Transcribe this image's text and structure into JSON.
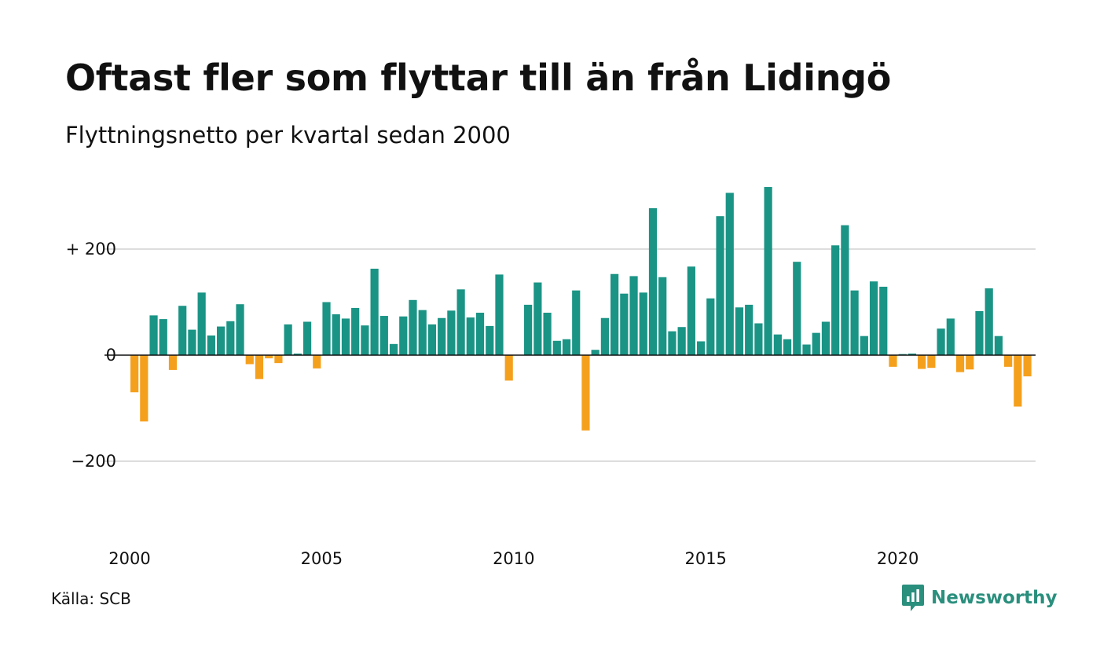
{
  "title": "Oftast fler som flyttar till än från Lidingö",
  "subtitle": "Flyttningsnetto per kvartal sedan 2000",
  "source": "Källa: SCB",
  "brand": {
    "name": "Newsworthy",
    "icon": "chat-bar-chart-icon",
    "color": "#2a8f7d"
  },
  "colors": {
    "positive": "#1a9485",
    "negative": "#f5a01c",
    "grid": "#dddddd",
    "zero_line": "#111111"
  },
  "chart_data": {
    "type": "bar",
    "x_start": "2000 Q1",
    "frequency": "quarterly",
    "x_ticks": [
      "2000",
      "2005",
      "2010",
      "2015",
      "2020"
    ],
    "y_ticks": [
      {
        "value": 200,
        "label": "+ 200"
      },
      {
        "value": 0,
        "label": "0"
      },
      {
        "value": -200,
        "label": "−200"
      }
    ],
    "ylim": [
      -350,
      320
    ],
    "grid": true,
    "values": [
      -70,
      -125,
      75,
      68,
      -28,
      93,
      48,
      118,
      37,
      54,
      64,
      96,
      -17,
      -45,
      -6,
      -15,
      58,
      3,
      63,
      -25,
      100,
      77,
      69,
      89,
      56,
      163,
      74,
      21,
      73,
      104,
      85,
      58,
      70,
      84,
      124,
      71,
      80,
      55,
      152,
      -48,
      0,
      95,
      137,
      80,
      27,
      30,
      122,
      -142,
      10,
      70,
      153,
      116,
      149,
      118,
      277,
      147,
      45,
      53,
      167,
      26,
      107,
      262,
      306,
      90,
      95,
      60,
      317,
      39,
      30,
      176,
      20,
      42,
      63,
      207,
      245,
      122,
      36,
      139,
      129,
      -22,
      2,
      3,
      -26,
      -24,
      50,
      69,
      -32,
      -27,
      83,
      126,
      36,
      -22,
      -97,
      -40
    ]
  }
}
